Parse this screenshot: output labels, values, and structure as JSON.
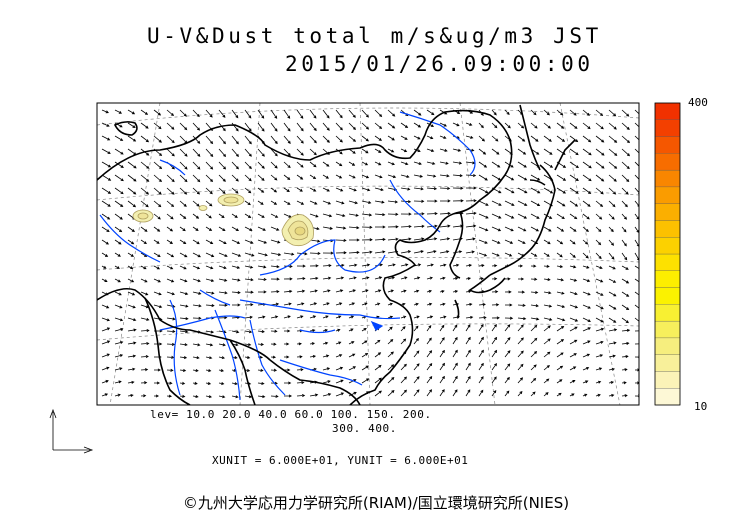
{
  "title": {
    "line1": "U-V&Dust total m/s&ug/m3 JST",
    "line2": "2015/01/26.09:00:00"
  },
  "contour_levels": {
    "line1": "lev= 10.0 20.0 40.0 60.0 100. 150. 200.",
    "line2": "300. 400."
  },
  "units_line": "XUNIT = 6.000E+01, YUNIT = 6.000E+01",
  "colorbar": {
    "max_label": "400",
    "min_label": "10",
    "colors": [
      "#fdf8d6",
      "#fbf3b8",
      "#f8f09a",
      "#f6ee7e",
      "#f7ef5c",
      "#f8f032",
      "#fbf200",
      "#fdee00",
      "#fde100",
      "#fcd100",
      "#fcc100",
      "#fbaf00",
      "#fa9c00",
      "#f98600",
      "#f76d00",
      "#f55700",
      "#f34000",
      "#f13100"
    ]
  },
  "copyright": "©九州大学応用力学研究所(RIAM)/国立環境研究所(NIES)",
  "colors": {
    "coastline": "#000000",
    "rivers": "#0044ff",
    "grid": "#777777",
    "dust_fill": "#f3efb0"
  }
}
